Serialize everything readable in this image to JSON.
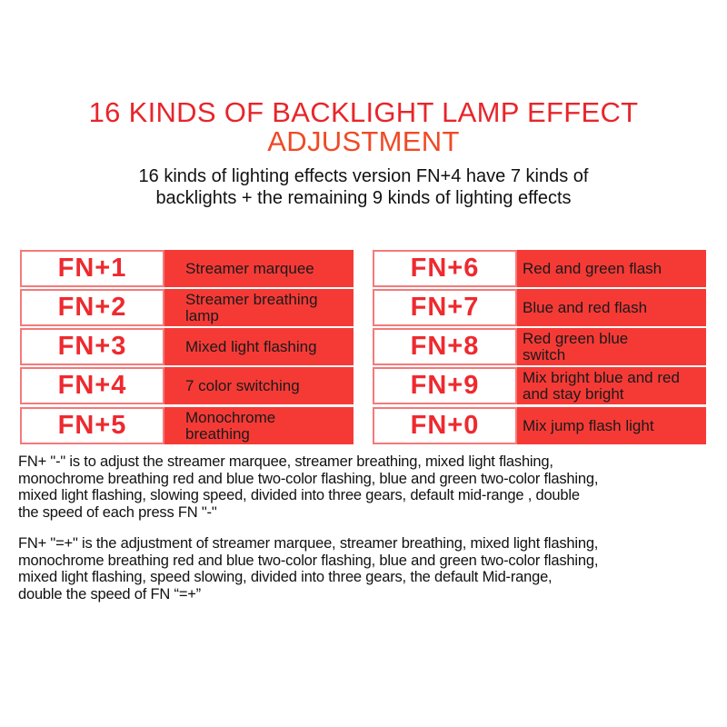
{
  "title": {
    "line1": "16 KINDS OF BACKLIGHT LAMP EFFECT",
    "line2": "ADJUSTMENT"
  },
  "subtitle": "16 kinds of lighting effects version FN+4 have 7 kinds of\nbacklights + the remaining 9 kinds of lighting effects",
  "colors": {
    "title_red": "#e8252b",
    "title_orange": "#f04a25",
    "cell_red": "#f53a36",
    "key_text": "#ee2a2f"
  },
  "left_table": [
    {
      "key": "FN+1",
      "effect": "Streamer marquee"
    },
    {
      "key": "FN+2",
      "effect": "Streamer breathing\nlamp"
    },
    {
      "key": "FN+3",
      "effect": "Mixed light flashing"
    },
    {
      "key": "FN+4",
      "effect": "7 color switching"
    },
    {
      "key": "FN+5",
      "effect": "Monochrome\nbreathing"
    }
  ],
  "right_table": [
    {
      "key": "FN+6",
      "effect": "Red and green flash"
    },
    {
      "key": "FN+7",
      "effect": "Blue and red flash"
    },
    {
      "key": "FN+8",
      "effect": "Red green blue\nswitch"
    },
    {
      "key": "FN+9",
      "effect": "Mix bright blue and red\nand stay bright"
    },
    {
      "key": "FN+0",
      "effect": "Mix jump flash light"
    }
  ],
  "notes": [
    "FN+ \"-\" is to adjust the streamer marquee, streamer breathing, mixed light flashing,\nmonochrome breathing red and blue two-color flashing, blue and green two-color flashing,\nmixed light flashing, slowing speed, divided into three gears, default mid-range , double\nthe speed of each press FN \"-\"",
    "FN+ \"=+\" is the adjustment of streamer marquee, streamer breathing, mixed light flashing,\nmonochrome breathing red and blue two-color flashing, blue and green two-color flashing,\nmixed light flashing, speed slowing, divided into three gears, the default Mid-range,\ndouble the speed of FN “=+”"
  ]
}
